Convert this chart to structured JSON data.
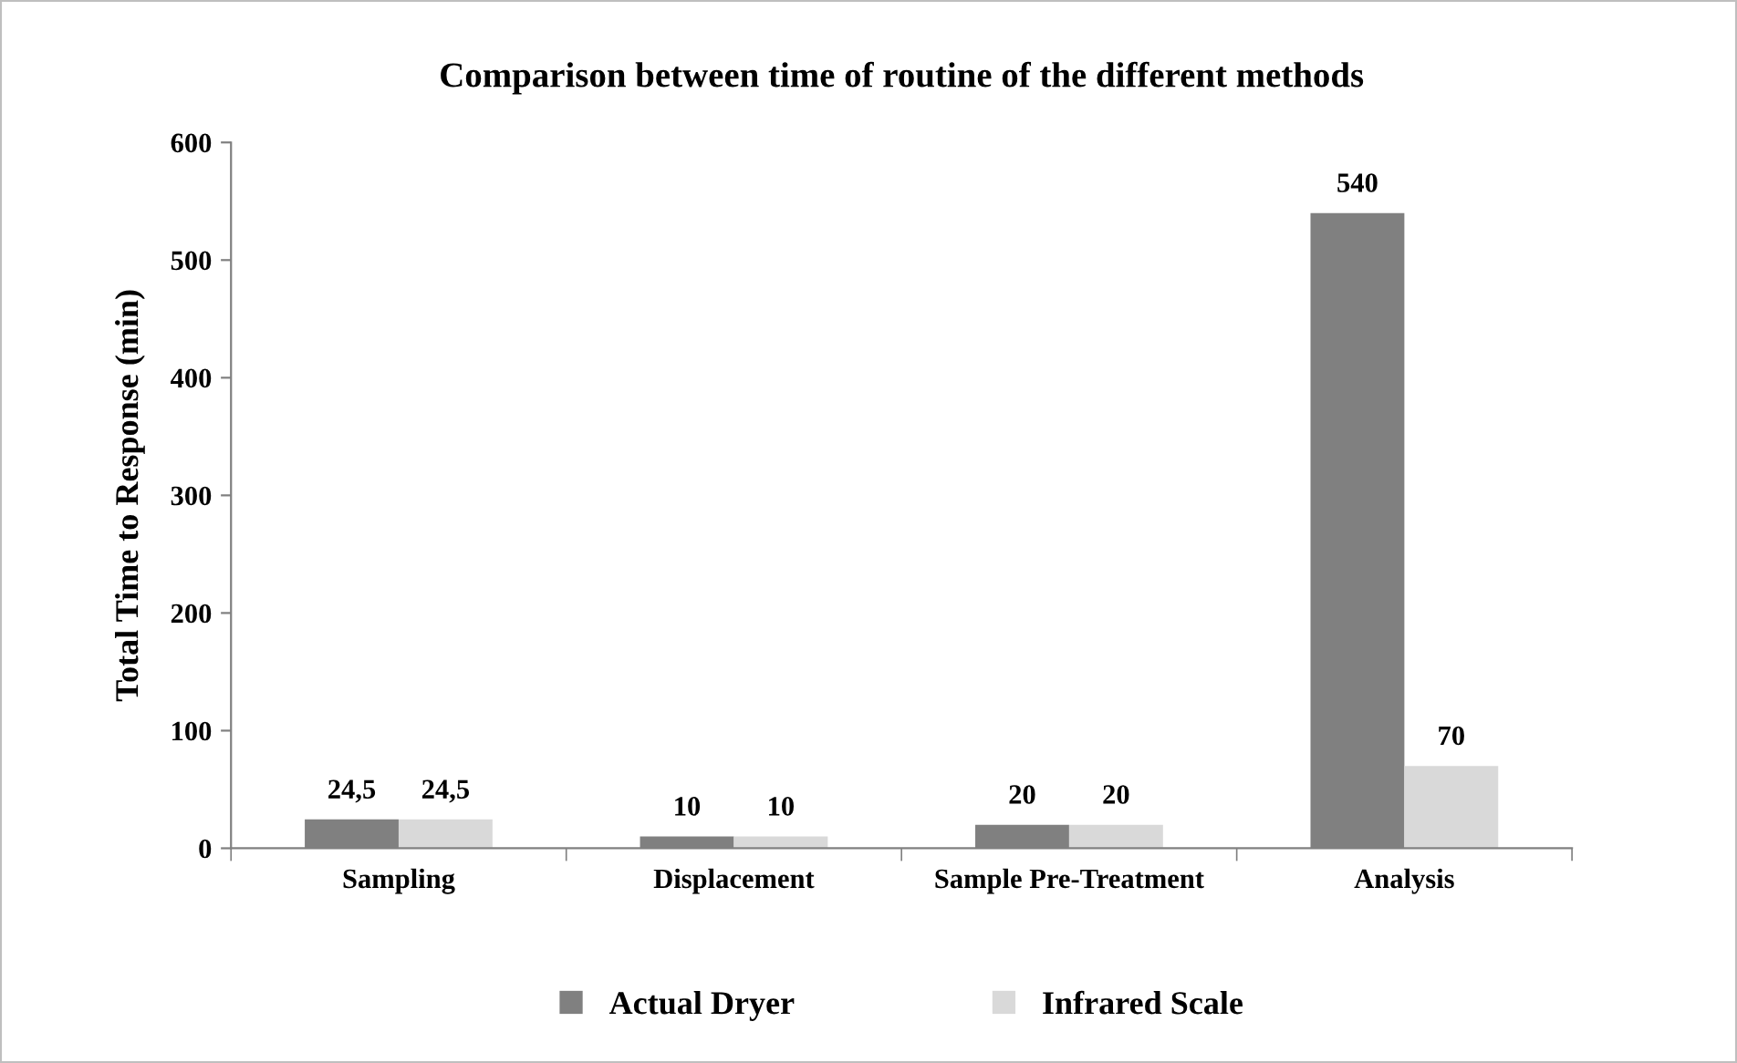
{
  "chart_data": {
    "type": "bar",
    "title": "Comparison between time of routine of the different methods",
    "ylabel": "Total Time to Response (min)",
    "categories": [
      "Sampling",
      "Displacement",
      "Sample Pre-Treatment",
      "Analysis"
    ],
    "series": [
      {
        "name": "Actual Dryer",
        "color": "#808080",
        "values": [
          24.5,
          10,
          20,
          540
        ],
        "value_labels": [
          "24,5",
          "10",
          "20",
          "540"
        ]
      },
      {
        "name": "Infrared Scale",
        "color": "#d9d9d9",
        "values": [
          24.5,
          10,
          20,
          70
        ],
        "value_labels": [
          "24,5",
          "10",
          "20",
          "70"
        ]
      }
    ],
    "ylim": [
      0,
      600
    ],
    "yticks": [
      0,
      100,
      200,
      300,
      400,
      500,
      600
    ],
    "grid": false,
    "legend": "bottom"
  }
}
